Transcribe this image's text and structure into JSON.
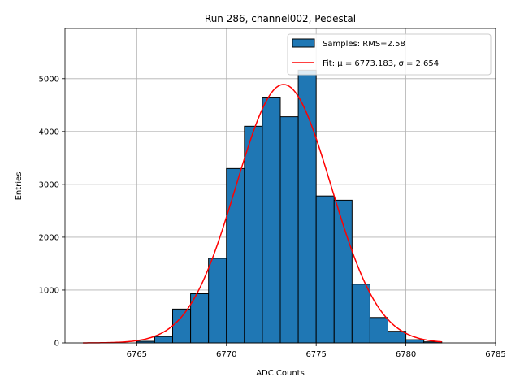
{
  "chart_data": {
    "type": "bar",
    "title": "Run 286, channel002, Pedestal",
    "xlabel": "ADC Counts",
    "ylabel": "Entries",
    "xlim": [
      6761,
      6785
    ],
    "ylim": [
      0,
      5950
    ],
    "xticks": [
      6765,
      6770,
      6775,
      6780,
      6785
    ],
    "yticks": [
      0,
      1000,
      2000,
      3000,
      4000,
      5000
    ],
    "grid": true,
    "legend_position": "top-right",
    "histogram": {
      "name": "Samples: RMS=2.58",
      "bin_width": 1,
      "bin_left_edges": [
        6765,
        6766,
        6767,
        6768,
        6769,
        6770,
        6771,
        6772,
        6773,
        6774,
        6775,
        6776,
        6777,
        6778,
        6779,
        6780,
        6781
      ],
      "values": [
        30,
        120,
        640,
        930,
        1600,
        3300,
        4100,
        4650,
        4280,
        5160,
        2780,
        2700,
        1110,
        480,
        220,
        60,
        20
      ],
      "color": "#1f77b4"
    },
    "fit": {
      "name": "Fit: μ = 6773.183, σ = 2.654",
      "mu": 6773.183,
      "sigma": 2.654,
      "amplitude": 4890,
      "x_range": [
        6762,
        6782
      ],
      "color": "#ff0000"
    }
  }
}
